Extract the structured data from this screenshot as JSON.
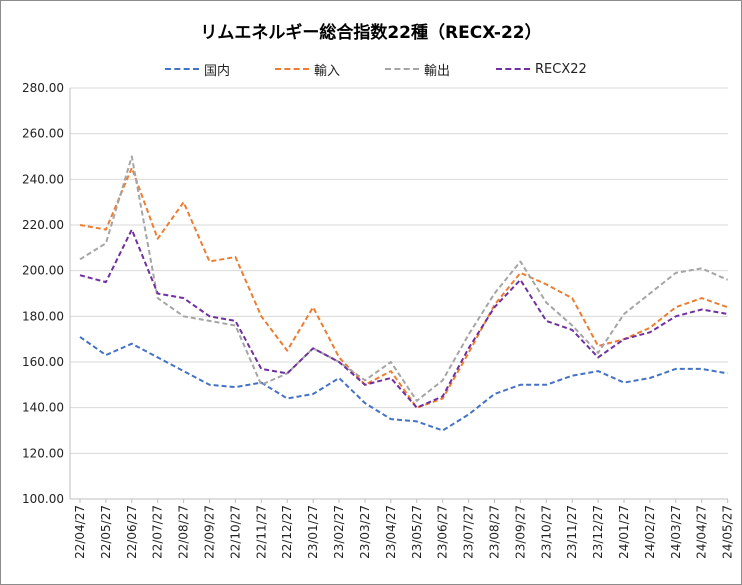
{
  "chart_data": {
    "type": "line",
    "title": "リムエネルギー総合指数22種（RECX-22）",
    "xlabel": "",
    "ylabel": "",
    "ylim": [
      100,
      280
    ],
    "yticks": [
      "100.00",
      "120.00",
      "140.00",
      "160.00",
      "180.00",
      "200.00",
      "220.00",
      "240.00",
      "260.00",
      "280.00"
    ],
    "categories": [
      "22/04/27",
      "22/05/27",
      "22/06/27",
      "22/07/27",
      "22/08/27",
      "22/09/27",
      "22/10/27",
      "22/11/27",
      "22/12/27",
      "23/01/27",
      "23/02/27",
      "23/03/27",
      "23/04/27",
      "23/05/27",
      "23/06/27",
      "23/07/27",
      "23/08/27",
      "23/09/27",
      "23/10/27",
      "23/11/27",
      "23/12/27",
      "24/01/27",
      "24/02/27",
      "24/03/27",
      "24/04/27",
      "24/05/27"
    ],
    "grid": true,
    "legend_position": "top",
    "series": [
      {
        "name": "国内",
        "color": "#4472C4",
        "values": [
          171,
          163,
          168,
          162,
          156,
          150,
          149,
          151,
          144,
          146,
          153,
          142,
          135,
          134,
          130,
          137,
          146,
          150,
          150,
          154,
          156,
          151,
          153,
          157,
          157,
          155
        ]
      },
      {
        "name": "輸入",
        "color": "#ED7D31",
        "values": [
          220,
          218,
          245,
          214,
          230,
          204,
          206,
          180,
          165,
          184,
          162,
          150,
          156,
          140,
          144,
          164,
          185,
          199,
          194,
          188,
          167,
          170,
          175,
          184,
          188,
          184
        ]
      },
      {
        "name": "輸出",
        "color": "#A5A5A5",
        "values": [
          205,
          212,
          250,
          188,
          180,
          178,
          176,
          150,
          155,
          166,
          160,
          152,
          160,
          143,
          152,
          172,
          190,
          204,
          186,
          176,
          164,
          181,
          190,
          199,
          201,
          196
        ]
      },
      {
        "name": "RECX22",
        "color": "#7030A0",
        "values": [
          198,
          195,
          218,
          190,
          188,
          180,
          178,
          157,
          155,
          166,
          160,
          150,
          153,
          140,
          145,
          166,
          184,
          196,
          178,
          174,
          162,
          170,
          173,
          180,
          183,
          181
        ]
      }
    ]
  }
}
